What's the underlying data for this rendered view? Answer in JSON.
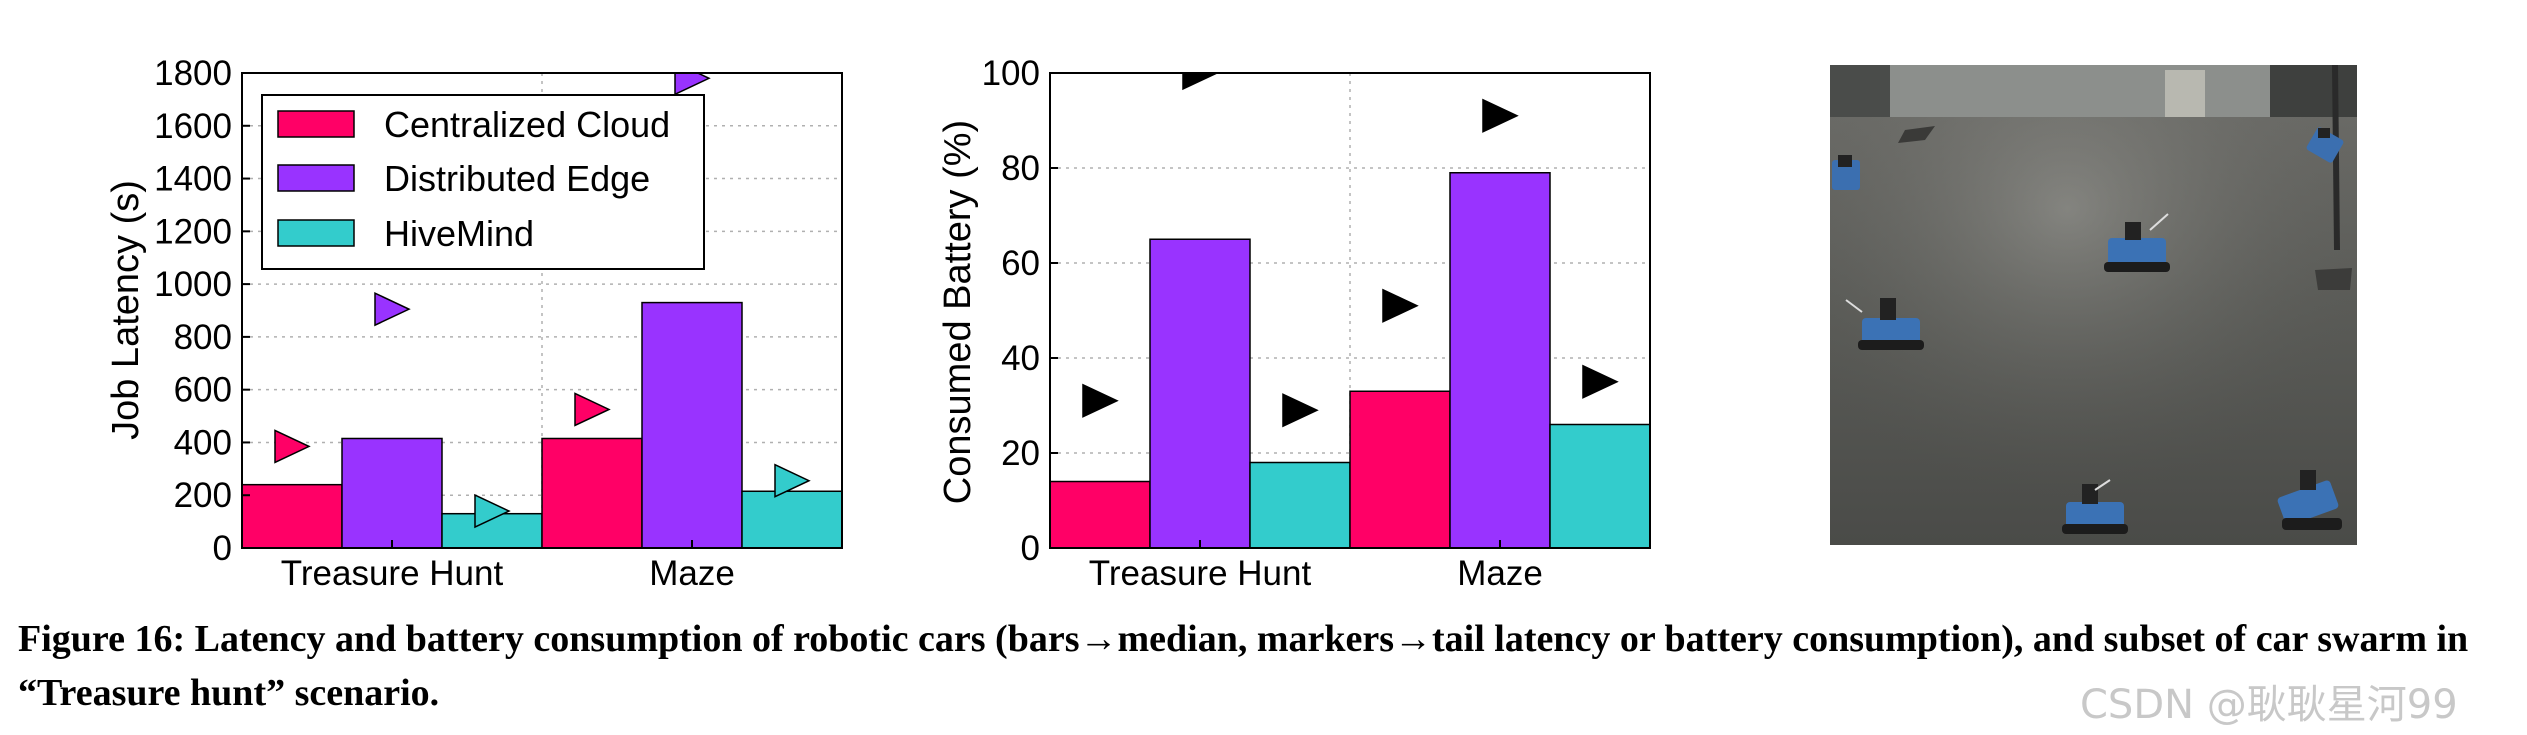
{
  "colors": {
    "centralized": "#ff0066",
    "distributed": "#9933ff",
    "hivemind": "#33cccc",
    "marker_dark": "#000000"
  },
  "chart_data": [
    {
      "type": "bar",
      "categories": [
        "Treasure Hunt",
        "Maze"
      ],
      "ylabel": "Job Latency (s)",
      "xlabel": "",
      "ylim": [
        0,
        1800
      ],
      "yticks": [
        "0",
        "200",
        "400",
        "600",
        "800",
        "1000",
        "1200",
        "1400",
        "1600",
        "1800"
      ],
      "grid": true,
      "legend": "top-left",
      "series": [
        {
          "name": "Centralized Cloud",
          "values": [
            240,
            415
          ],
          "tail": [
            385,
            525
          ]
        },
        {
          "name": "Distributed Edge",
          "values": [
            415,
            930
          ],
          "tail": [
            905,
            1780
          ]
        },
        {
          "name": "HiveMind",
          "values": [
            130,
            215
          ],
          "tail": [
            140,
            255
          ]
        }
      ]
    },
    {
      "type": "bar",
      "categories": [
        "Treasure Hunt",
        "Maze"
      ],
      "ylabel": "Consumed Battery (%)",
      "xlabel": "",
      "ylim": [
        0,
        100
      ],
      "yticks": [
        "0",
        "20",
        "40",
        "60",
        "80",
        "100"
      ],
      "grid": true,
      "series": [
        {
          "values": [
            14,
            33
          ],
          "tail": [
            31,
            51
          ]
        },
        {
          "values": [
            65,
            79
          ],
          "tail": [
            100,
            91
          ]
        },
        {
          "values": [
            18,
            26
          ],
          "tail": [
            29,
            35
          ]
        }
      ]
    }
  ],
  "photo": {
    "description_icon": "robot-car-swarm-photo"
  },
  "caption": "Figure 16:  Latency and battery consumption of robotic cars (bars→median, markers→tail latency or battery consumption), and subset of car swarm in “Treasure hunt” scenario.",
  "watermark": "CSDN @耿耿星河99"
}
